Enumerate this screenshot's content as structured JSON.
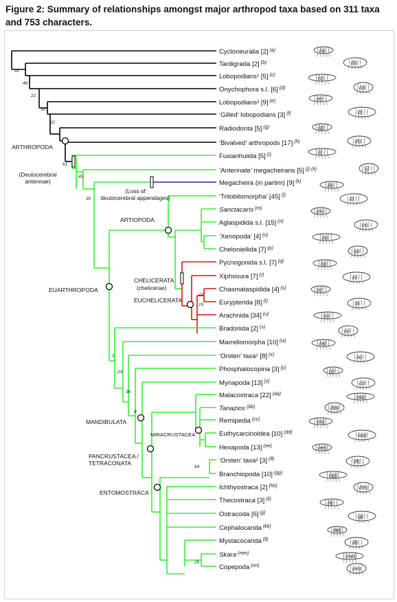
{
  "caption": "Figure 2: Summary of relationships amongst major arthropod taxa based on 311 taxa and 753 characters.",
  "colors": {
    "basal": "#000000",
    "euarthropoda": "#33ee33",
    "megacheira": "#2222aa",
    "chelicerata": "#dd1111"
  },
  "taxa": [
    {
      "name": "Cycloneuralia",
      "count": "[2]",
      "ref": "(a)"
    },
    {
      "name": "Tardigrada",
      "count": "[2]",
      "ref": "(b)"
    },
    {
      "name": "Lobopodians¹",
      "count": "[5]",
      "ref": "(c)"
    },
    {
      "name": "Onychophora s.l.",
      "count": "[6]",
      "ref": "(d)"
    },
    {
      "name": "Lobopodians²",
      "count": "[9]",
      "ref": "(e)"
    },
    {
      "name": "‘Gilled’ lobopodians",
      "count": "[3]",
      "ref": "(f)"
    },
    {
      "name": "Radiodonta",
      "count": "[5]",
      "ref": "(g)"
    },
    {
      "name": "‘Bivalved’ arthropods",
      "count": "[17]",
      "ref": "(h)"
    },
    {
      "name": "Fuxianhuiida",
      "count": "[5]",
      "ref": "(i)"
    },
    {
      "name": "‘Antennate’ megacheirans",
      "count": "[5]",
      "ref": "(j) (k)"
    },
    {
      "name": "Megacheira (in partim)",
      "count": "[9]",
      "ref": "(k)"
    },
    {
      "name": "‘Trilobitomorpha’",
      "count": "[45]",
      "ref": "(l)"
    },
    {
      "name": "Sanctacaris",
      "count": "",
      "ref": "(m)"
    },
    {
      "name": "Aglaspidida s.l.",
      "count": "[15]",
      "ref": "(n)"
    },
    {
      "name": "‘Xenopoda’",
      "count": "[4]",
      "ref": "(o)"
    },
    {
      "name": "Cheloniellida",
      "count": "[7]",
      "ref": "(p)"
    },
    {
      "name": "Pycnogonida s.l.",
      "count": "[7]",
      "ref": "(q)"
    },
    {
      "name": "Xiphosura",
      "count": "[7]",
      "ref": "(r)"
    },
    {
      "name": "Chasmataspidida",
      "count": "[4]",
      "ref": "(s)"
    },
    {
      "name": "Eurypterida",
      "count": "[8]",
      "ref": "(t)"
    },
    {
      "name": "Arachnida",
      "count": "[34]",
      "ref": "(u)"
    },
    {
      "name": "Bradoriida",
      "count": "[2]",
      "ref": "(v)"
    },
    {
      "name": "Marrellomorpha",
      "count": "[10]",
      "ref": "(w)"
    },
    {
      "name": "‘Orsten’ taxa¹",
      "count": "[8]",
      "ref": "(x)"
    },
    {
      "name": "Phosphatocopina",
      "count": "[3]",
      "ref": "(y)"
    },
    {
      "name": "Myriapoda",
      "count": "[13]",
      "ref": "(z)"
    },
    {
      "name": "Malacostraca",
      "count": "[22]",
      "ref": "(aa)"
    },
    {
      "name": "Tanazios",
      "count": "",
      "ref": "(bb)"
    },
    {
      "name": "Remipedia",
      "count": "",
      "ref": "(cc)"
    },
    {
      "name": "Euthycarcinoidea",
      "count": "[10]",
      "ref": "(dd)"
    },
    {
      "name": "Hexapoda",
      "count": "[13]",
      "ref": "(ee)"
    },
    {
      "name": "‘Orsten’ taxa²",
      "count": "[3]",
      "ref": "(ff)"
    },
    {
      "name": "Branchiopoda",
      "count": "[10]",
      "ref": "(gg)"
    },
    {
      "name": "Ichthyostraca",
      "count": "[2]",
      "ref": "(hh)"
    },
    {
      "name": "Thecostraca",
      "count": "[3]",
      "ref": "(ii)"
    },
    {
      "name": "Ostracoda",
      "count": "[6]",
      "ref": "(jj)"
    },
    {
      "name": "Cephalocarida",
      "count": "",
      "ref": "(kk)"
    },
    {
      "name": "Mystacocarida",
      "count": "",
      "ref": "(ll)"
    },
    {
      "name": "Skara",
      "count": "",
      "ref": "(mm)"
    },
    {
      "name": "Copepoda",
      "count": "",
      "ref": "(nn)"
    }
  ],
  "clades": {
    "arthropoda": "ARTHROPODA",
    "deutocerebral": "(Deutocerebral antennae)",
    "loss_deutocerebral": "(Loss of deutocerebral appendages)",
    "artiopoda": "ARTIOPODA",
    "euarthropoda": "EUARTHROPODA",
    "chelicerata": "CHELICERATA",
    "chelicerae": "(chelicerae)",
    "euchelicerata": "EUCHELICERATA",
    "mandibulata": "MANDIBULATA",
    "miracrustacea": "MIRACRUSTACEA",
    "pancrustacea": "PANCRUSTACEA / TETRACONATA",
    "entomostraca": "ENTOMOSTRACA"
  },
  "support": [
    "91",
    "48",
    "22",
    "30",
    "22",
    "61",
    "45",
    "35",
    "1",
    "23",
    "36",
    "8",
    "64",
    "22",
    "19",
    "26"
  ],
  "illustration_labels": [
    "(a)",
    "(b)",
    "(c)",
    "(d)",
    "(e)",
    "(f)",
    "(g)",
    "(h)",
    "(i)",
    "(j)",
    "(k)",
    "(l)",
    "(m)",
    "(n)",
    "(o)",
    "(p)",
    "(q)",
    "(r)",
    "(s)",
    "(t)",
    "(u)",
    "(v)",
    "(w)",
    "(x)",
    "(y)",
    "(z)",
    "(aa)",
    "(bb)",
    "(cc)",
    "(dd)",
    "(ee)",
    "(ff)",
    "(gg)",
    "(hh)",
    "(ii)",
    "(jj)",
    "(kk)",
    "(ll)",
    "(mm)",
    "(nn)"
  ]
}
